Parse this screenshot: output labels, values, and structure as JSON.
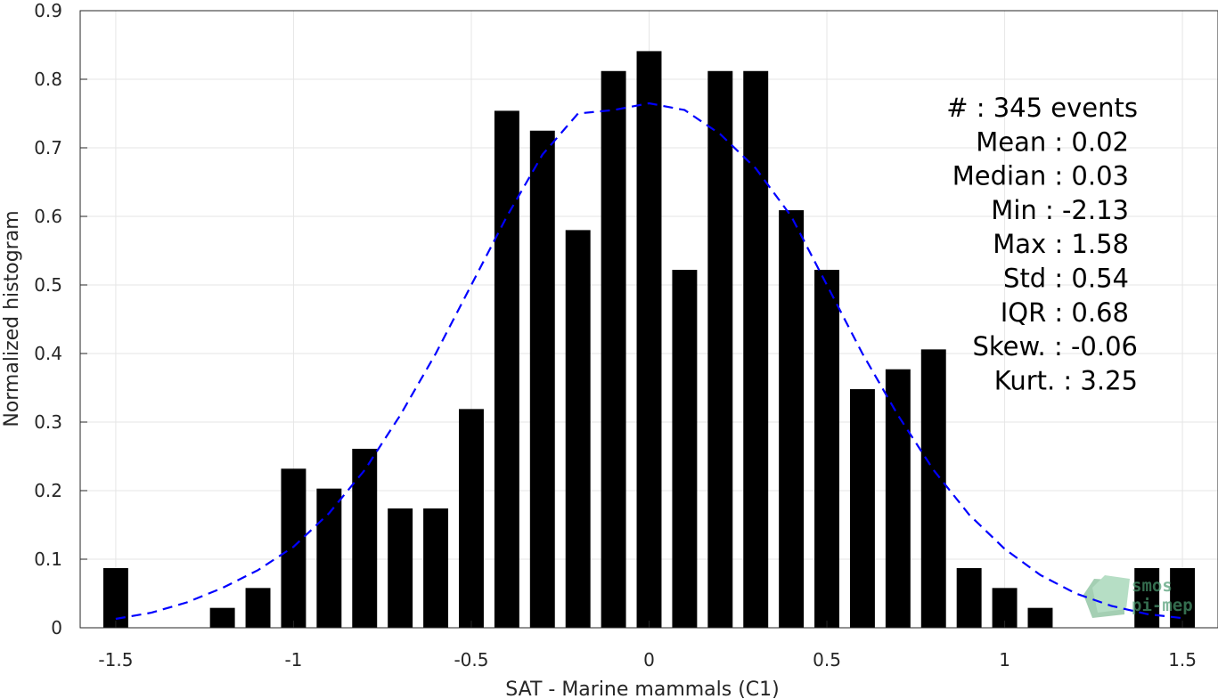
{
  "chart_data": {
    "type": "bar",
    "xlabel": "SAT - Marine mammals (C1)",
    "ylabel": "Normalized histogram",
    "xlim": [
      -1.6,
      1.6
    ],
    "ylim": [
      0,
      0.9
    ],
    "grid": true,
    "xticks": [
      -1.5,
      -1,
      -0.5,
      0,
      0.5,
      1,
      1.5
    ],
    "xtick_labels": [
      "-1.5",
      "-1",
      "-0.5",
      "0",
      "0.5",
      "1",
      "1.5"
    ],
    "yticks": [
      0,
      0.1,
      0.2,
      0.3,
      0.4,
      0.5,
      0.6,
      0.7,
      0.8,
      0.9
    ],
    "ytick_labels": [
      "0",
      "0.1",
      "0.2",
      "0.3",
      "0.4",
      "0.5",
      "0.6",
      "0.7",
      "0.8",
      "0.9"
    ],
    "bar_width": 0.07,
    "bar_color": "#000000",
    "bars": [
      {
        "x": -1.5,
        "y": 0.087
      },
      {
        "x": -1.2,
        "y": 0.029
      },
      {
        "x": -1.1,
        "y": 0.058
      },
      {
        "x": -1.0,
        "y": 0.232
      },
      {
        "x": -0.9,
        "y": 0.203
      },
      {
        "x": -0.8,
        "y": 0.261
      },
      {
        "x": -0.7,
        "y": 0.174
      },
      {
        "x": -0.6,
        "y": 0.174
      },
      {
        "x": -0.5,
        "y": 0.319
      },
      {
        "x": -0.4,
        "y": 0.754
      },
      {
        "x": -0.3,
        "y": 0.725
      },
      {
        "x": -0.2,
        "y": 0.58
      },
      {
        "x": -0.1,
        "y": 0.812
      },
      {
        "x": 0.0,
        "y": 0.841
      },
      {
        "x": 0.1,
        "y": 0.522
      },
      {
        "x": 0.2,
        "y": 0.812
      },
      {
        "x": 0.3,
        "y": 0.812
      },
      {
        "x": 0.4,
        "y": 0.609
      },
      {
        "x": 0.5,
        "y": 0.522
      },
      {
        "x": 0.6,
        "y": 0.348
      },
      {
        "x": 0.7,
        "y": 0.377
      },
      {
        "x": 0.8,
        "y": 0.406
      },
      {
        "x": 0.9,
        "y": 0.087
      },
      {
        "x": 1.0,
        "y": 0.058
      },
      {
        "x": 1.1,
        "y": 0.029
      },
      {
        "x": 1.4,
        "y": 0.087
      },
      {
        "x": 1.5,
        "y": 0.087
      }
    ],
    "fit_line": {
      "style": "dashed",
      "color": "#0000ff",
      "x": [
        -1.5,
        -1.4,
        -1.3,
        -1.2,
        -1.1,
        -1.0,
        -0.9,
        -0.8,
        -0.7,
        -0.6,
        -0.5,
        -0.4,
        -0.3,
        -0.2,
        -0.1,
        0.0,
        0.1,
        0.2,
        0.3,
        0.4,
        0.5,
        0.6,
        0.7,
        0.8,
        0.9,
        1.0,
        1.1,
        1.2,
        1.3,
        1.4,
        1.5
      ],
      "y": [
        0.013,
        0.022,
        0.037,
        0.058,
        0.084,
        0.118,
        0.167,
        0.23,
        0.31,
        0.4,
        0.5,
        0.6,
        0.69,
        0.75,
        0.755,
        0.765,
        0.755,
        0.72,
        0.67,
        0.6,
        0.5,
        0.4,
        0.31,
        0.23,
        0.165,
        0.115,
        0.077,
        0.05,
        0.032,
        0.02,
        0.014
      ]
    },
    "stats_text": [
      "#  : 345 events",
      "Mean : 0.02",
      "Median : 0.03",
      "Min : -2.13",
      "Max : 1.58",
      "Std : 0.54",
      "IQR : 0.68",
      "Skew. : -0.06",
      "Kurt. : 3.25"
    ]
  },
  "watermark": {
    "line1": "smos",
    "line2": "pi-mep",
    "color": "#4a9a70"
  }
}
